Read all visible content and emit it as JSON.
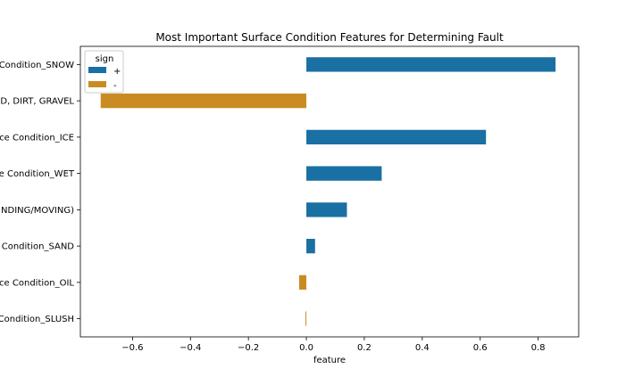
{
  "chart_data": {
    "type": "bar",
    "orientation": "horizontal",
    "title": "Most Important Surface Condition Features for Determining Fault",
    "xlabel": "feature",
    "ylabel": "",
    "xlim": [
      -0.78,
      0.94
    ],
    "xticks": [
      -0.6,
      -0.4,
      -0.2,
      0.0,
      0.2,
      0.4,
      0.6,
      0.8
    ],
    "xtick_labels": [
      "−0.6",
      "−0.4",
      "−0.2",
      "0.0",
      "0.2",
      "0.4",
      "0.6",
      "0.8"
    ],
    "categories": [
      "Condition_SNOW",
      "D, DIRT, GRAVEL",
      "ce Condition_ICE",
      "e Condition_WET",
      "NDING/MOVING)",
      "Condition_SAND",
      "ce Condition_OIL",
      "Condition_SLUSH"
    ],
    "values": [
      0.86,
      -0.71,
      0.62,
      0.26,
      0.14,
      0.03,
      -0.025,
      -0.003
    ],
    "sign": [
      "+",
      "-",
      "+",
      "+",
      "+",
      "+",
      "-",
      "-"
    ],
    "legend": {
      "title": "sign",
      "position": "top-left",
      "entries": [
        {
          "label": "+",
          "color": "#1a6fa3"
        },
        {
          "label": "-",
          "color": "#c98c23"
        }
      ]
    },
    "colors": {
      "+": "#1a6fa3",
      "-": "#c98c23"
    },
    "grid": false
  }
}
